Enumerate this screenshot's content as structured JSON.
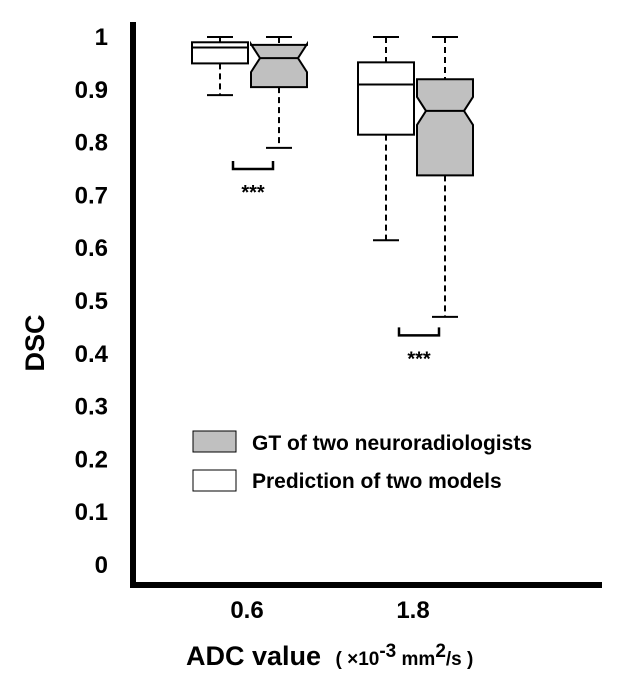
{
  "chart_data": {
    "type": "boxplot",
    "ylabel": "DSC",
    "xlabel": "ADC value",
    "xlabel_unit_prefix": "( ×10",
    "xlabel_unit_exp": "-3",
    "xlabel_unit_mid": " mm",
    "xlabel_unit_sq": "2",
    "xlabel_unit_suffix": "/s )",
    "ylim": [
      0,
      1
    ],
    "yticks": [
      "0",
      "0.1",
      "0.2",
      "0.3",
      "0.4",
      "0.5",
      "0.6",
      "0.7",
      "0.8",
      "0.9",
      "1"
    ],
    "categories": [
      "0.6",
      "1.8"
    ],
    "legend": [
      {
        "label": "GT of two neuroradiologists",
        "color": "#c0c0c0"
      },
      {
        "label": "Prediction of two models",
        "color": "#ffffff"
      }
    ],
    "series": [
      {
        "name": "Prediction of two models",
        "color": "#ffffff",
        "notched": false,
        "boxes": [
          {
            "category": "0.6",
            "min": 0.89,
            "q1": 0.95,
            "median": 0.98,
            "q3": 0.99,
            "max": 1.0
          },
          {
            "category": "1.8",
            "min": 0.615,
            "q1": 0.815,
            "median": 0.91,
            "q3": 0.952,
            "max": 1.0
          }
        ]
      },
      {
        "name": "GT of two neuroradiologists",
        "color": "#c0c0c0",
        "notched": true,
        "boxes": [
          {
            "category": "0.6",
            "min": 0.79,
            "q1": 0.905,
            "median": 0.96,
            "q3": 0.985,
            "max": 1.0
          },
          {
            "category": "1.8",
            "min": 0.47,
            "q1": 0.738,
            "median": 0.86,
            "q3": 0.92,
            "max": 1.0
          }
        ]
      }
    ],
    "annotations": [
      {
        "category": "0.6",
        "text": "***",
        "y": 0.75
      },
      {
        "category": "1.8",
        "text": "***",
        "y": 0.435
      }
    ]
  }
}
